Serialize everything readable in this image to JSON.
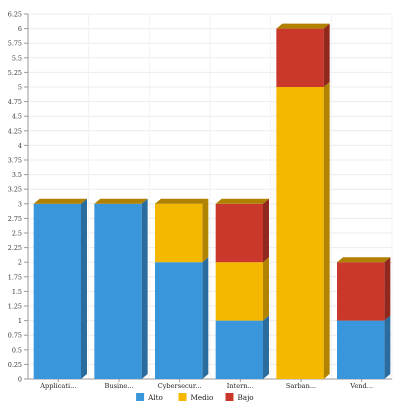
{
  "chart_data": {
    "type": "bar",
    "stacked": true,
    "style": "3d",
    "categories": [
      "Applicati...",
      "Busine...",
      "Cybersecur...",
      "Intern...",
      "Sarban...",
      "Vend..."
    ],
    "series": [
      {
        "name": "Alto",
        "color": "#3a96db",
        "values": [
          3,
          3,
          2,
          1,
          0,
          1
        ]
      },
      {
        "name": "Medio",
        "color": "#f5b800",
        "values": [
          0,
          0,
          1,
          1,
          5,
          0
        ]
      },
      {
        "name": "Bajo",
        "color": "#c9382a",
        "values": [
          0,
          0,
          0,
          1,
          1,
          1
        ]
      }
    ],
    "ylim": [
      0,
      6.25
    ],
    "yticks": [
      "0",
      "0.25",
      "0.5",
      "0.75",
      "1",
      "1.25",
      "1.5",
      "1.75",
      "2",
      "2.25",
      "2.5",
      "2.75",
      "3",
      "3.25",
      "3.5",
      "3.75",
      "4",
      "4.25",
      "4.5",
      "4.75",
      "5",
      "5.25",
      "5.5",
      "5.75",
      "6",
      "6.25"
    ],
    "grid": true,
    "legend_position": "bottom",
    "title": "",
    "xlabel": "",
    "ylabel": ""
  }
}
